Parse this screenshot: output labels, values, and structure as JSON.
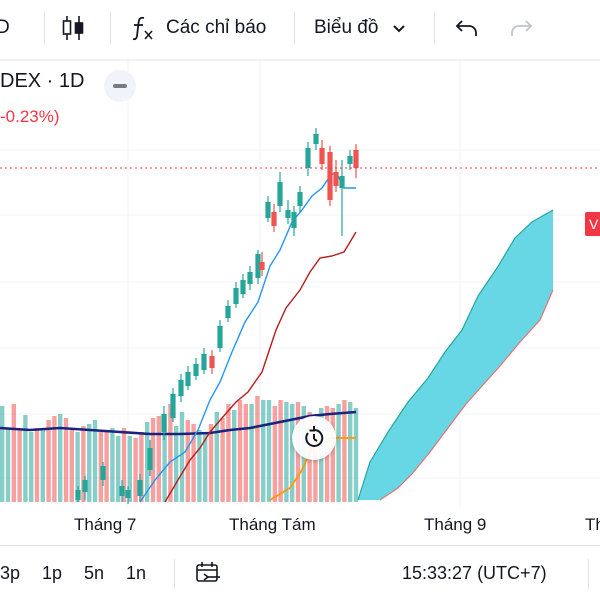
{
  "toolbar": {
    "interval_partial": "D",
    "indicators_label": "Các chỉ báo",
    "chart_type_label": "Biểu đồ"
  },
  "legend": {
    "symbol_partial": "DEX · 1D",
    "change_partial": "-0.23%)"
  },
  "price_label_partial": "V",
  "time_axis": [
    "Tháng 7",
    "Tháng Tám",
    "Tháng 9",
    "Th"
  ],
  "bottom_bar": {
    "ranges": [
      "3p",
      "1p",
      "5n",
      "1n"
    ],
    "clock": "15:33:27 (UTC+7)"
  },
  "colors": {
    "up": "#26a69a",
    "down": "#ef5350",
    "cloud": "#4dd0e1",
    "accent_red": "#f23645",
    "ma_line": "#1a237e",
    "volume_ma": "#ff9800"
  },
  "icons": [
    "candlestick-icon",
    "function-fx-icon",
    "chevron-down-icon",
    "undo-icon",
    "redo-icon",
    "collapse-icon",
    "replay-icon",
    "calendar-range-icon"
  ]
}
